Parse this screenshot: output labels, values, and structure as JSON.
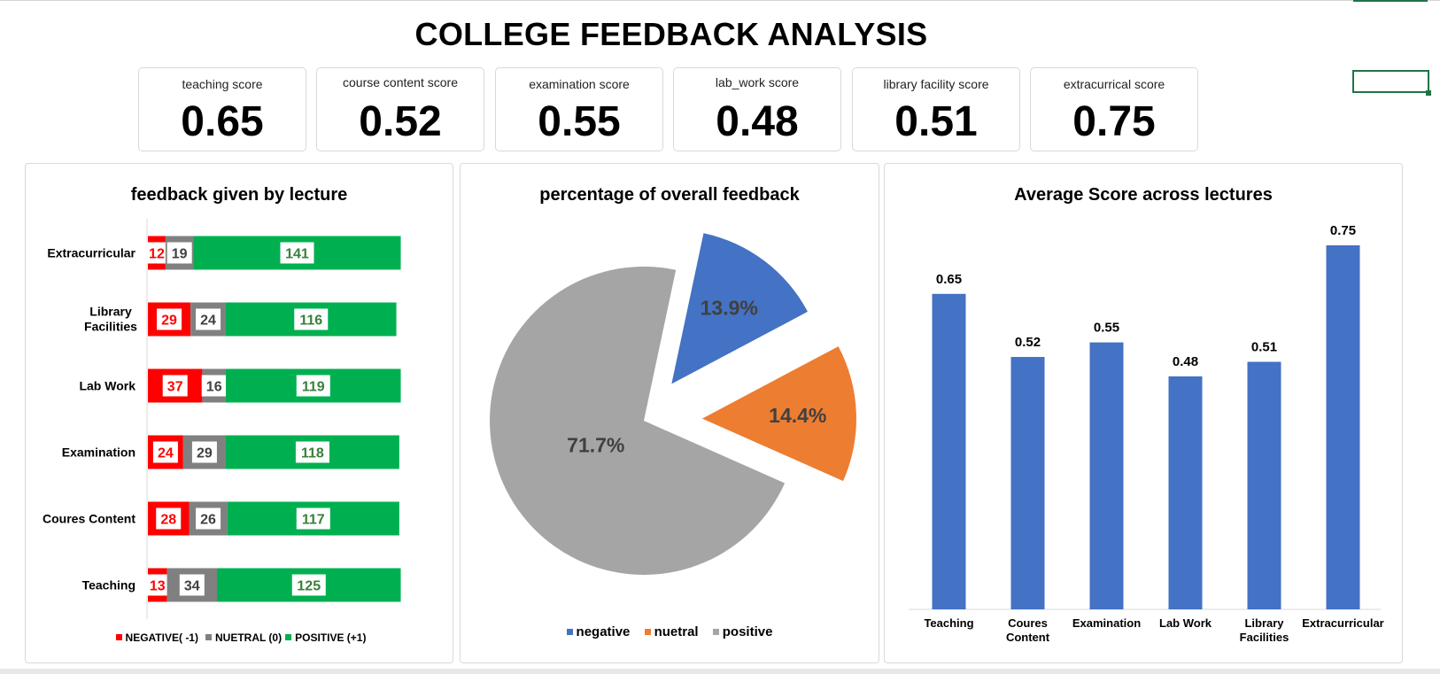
{
  "title": "COLLEGE FEEDBACK ANALYSIS",
  "kpis": [
    {
      "label": "teaching score",
      "value": "0.65"
    },
    {
      "label": "course content score",
      "value": "0.52"
    },
    {
      "label": "examination score",
      "value": "0.55"
    },
    {
      "label": "lab_work score",
      "value": "0.48"
    },
    {
      "label": "library facility score",
      "value": "0.51"
    },
    {
      "label": "extracurrical score",
      "value": "0.75"
    }
  ],
  "chart_data": [
    {
      "type": "bar",
      "orientation": "horizontal",
      "stacked": true,
      "title": "feedback given by lecture",
      "categories": [
        "Extracurricular",
        "Library Facilities",
        "Lab Work",
        "Examination",
        "Coures Content",
        "Teaching"
      ],
      "series": [
        {
          "name": "NEGATIVE( -1)",
          "color": "#ff0000",
          "values": [
            12,
            29,
            37,
            24,
            28,
            13
          ]
        },
        {
          "name": "NUETRAL (0)",
          "color": "#808080",
          "values": [
            19,
            24,
            16,
            29,
            26,
            34
          ]
        },
        {
          "name": "POSITIVE (+1)",
          "color": "#00b050",
          "values": [
            141,
            116,
            119,
            118,
            117,
            125
          ]
        }
      ],
      "legend": "bottom"
    },
    {
      "type": "pie",
      "title": "percentage of overall feedback",
      "labels": [
        "negative",
        "nuetral",
        "positive"
      ],
      "values": [
        13.9,
        14.4,
        71.7
      ],
      "value_labels": [
        "13.9%",
        "14.4%",
        "71.7%"
      ],
      "colors": [
        "#4472c4",
        "#ed7d31",
        "#a5a5a5"
      ],
      "exploded": true,
      "legend": "bottom"
    },
    {
      "type": "bar",
      "title": "Average Score across lectures",
      "categories": [
        "Teaching",
        "Coures Content",
        "Examination",
        "Lab Work",
        "Library Facilities",
        "Extracurricular"
      ],
      "values": [
        0.65,
        0.52,
        0.55,
        0.48,
        0.51,
        0.75
      ],
      "value_labels": [
        "0.65",
        "0.52",
        "0.55",
        "0.48",
        "0.51",
        "0.75"
      ],
      "color": "#4472c4",
      "ylim": [
        0,
        0.75
      ],
      "grid": false
    }
  ]
}
